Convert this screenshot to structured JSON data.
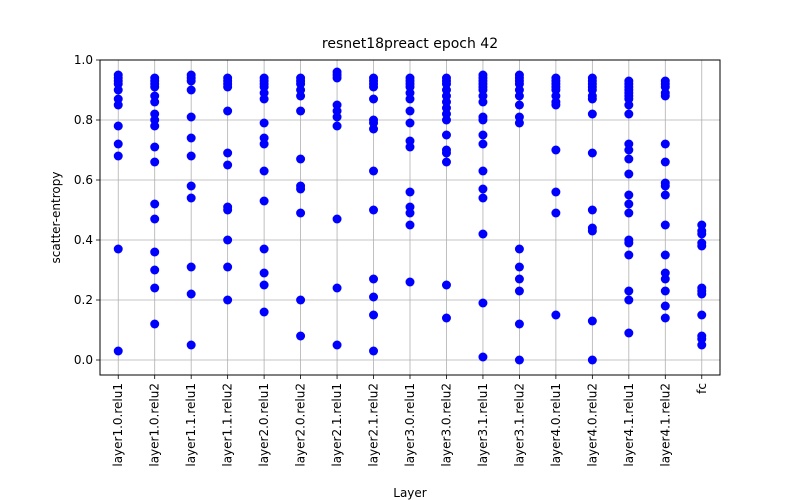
{
  "chart_data": {
    "type": "scatter",
    "title": "resnet18preact epoch 42",
    "xlabel": "Layer",
    "ylabel": "scatter-entropy",
    "ylim": [
      -0.05,
      1.0
    ],
    "yticks": [
      0.0,
      0.2,
      0.4,
      0.6,
      0.8,
      1.0
    ],
    "ytick_labels": [
      "0.0",
      "0.2",
      "0.4",
      "0.6",
      "0.8",
      "1.0"
    ],
    "grid": true,
    "marker_color": "#0000ff",
    "categories": [
      "layer1.0.relu1",
      "layer1.0.relu2",
      "layer1.1.relu1",
      "layer1.1.relu2",
      "layer2.0.relu1",
      "layer2.0.relu2",
      "layer2.1.relu1",
      "layer2.1.relu2",
      "layer3.0.relu1",
      "layer3.0.relu2",
      "layer3.1.relu1",
      "layer3.1.relu2",
      "layer4.0.relu1",
      "layer4.0.relu2",
      "layer4.1.relu1",
      "layer4.1.relu2",
      "fc"
    ],
    "points": [
      [
        0.95,
        0.94,
        0.93,
        0.92,
        0.9,
        0.87,
        0.85,
        0.78,
        0.72,
        0.68,
        0.37,
        0.03
      ],
      [
        0.94,
        0.93,
        0.92,
        0.91,
        0.88,
        0.86,
        0.82,
        0.8,
        0.78,
        0.71,
        0.66,
        0.52,
        0.47,
        0.36,
        0.3,
        0.24,
        0.12
      ],
      [
        0.95,
        0.94,
        0.93,
        0.9,
        0.81,
        0.74,
        0.68,
        0.58,
        0.54,
        0.31,
        0.22,
        0.05
      ],
      [
        0.94,
        0.93,
        0.92,
        0.91,
        0.83,
        0.69,
        0.65,
        0.51,
        0.5,
        0.4,
        0.31,
        0.2
      ],
      [
        0.94,
        0.93,
        0.92,
        0.91,
        0.89,
        0.87,
        0.79,
        0.74,
        0.72,
        0.63,
        0.53,
        0.37,
        0.29,
        0.25,
        0.16
      ],
      [
        0.94,
        0.93,
        0.92,
        0.9,
        0.88,
        0.83,
        0.67,
        0.58,
        0.57,
        0.49,
        0.2,
        0.08
      ],
      [
        0.96,
        0.95,
        0.94,
        0.85,
        0.83,
        0.81,
        0.78,
        0.47,
        0.24,
        0.05
      ],
      [
        0.94,
        0.93,
        0.92,
        0.91,
        0.87,
        0.8,
        0.79,
        0.77,
        0.63,
        0.5,
        0.27,
        0.21,
        0.15,
        0.03
      ],
      [
        0.94,
        0.93,
        0.92,
        0.91,
        0.89,
        0.87,
        0.83,
        0.79,
        0.73,
        0.71,
        0.56,
        0.51,
        0.49,
        0.45,
        0.26
      ],
      [
        0.94,
        0.93,
        0.92,
        0.9,
        0.88,
        0.86,
        0.84,
        0.82,
        0.8,
        0.75,
        0.7,
        0.69,
        0.66,
        0.25,
        0.14
      ],
      [
        0.95,
        0.94,
        0.93,
        0.92,
        0.91,
        0.9,
        0.88,
        0.86,
        0.81,
        0.8,
        0.75,
        0.72,
        0.63,
        0.57,
        0.54,
        0.42,
        0.19,
        0.01
      ],
      [
        0.95,
        0.94,
        0.93,
        0.92,
        0.9,
        0.88,
        0.85,
        0.81,
        0.79,
        0.37,
        0.31,
        0.27,
        0.23,
        0.12,
        0.0
      ],
      [
        0.94,
        0.93,
        0.92,
        0.91,
        0.9,
        0.88,
        0.86,
        0.85,
        0.7,
        0.56,
        0.49,
        0.15
      ],
      [
        0.94,
        0.93,
        0.92,
        0.91,
        0.9,
        0.88,
        0.87,
        0.82,
        0.69,
        0.5,
        0.44,
        0.43,
        0.13,
        0.0
      ],
      [
        0.93,
        0.92,
        0.91,
        0.9,
        0.89,
        0.88,
        0.87,
        0.85,
        0.82,
        0.72,
        0.7,
        0.67,
        0.62,
        0.55,
        0.52,
        0.49,
        0.4,
        0.39,
        0.35,
        0.23,
        0.2,
        0.09
      ],
      [
        0.93,
        0.92,
        0.91,
        0.89,
        0.88,
        0.72,
        0.66,
        0.59,
        0.58,
        0.55,
        0.45,
        0.35,
        0.29,
        0.27,
        0.23,
        0.18,
        0.14
      ],
      [
        0.45,
        0.43,
        0.42,
        0.39,
        0.38,
        0.24,
        0.23,
        0.22,
        0.15,
        0.08,
        0.07,
        0.05
      ]
    ]
  }
}
